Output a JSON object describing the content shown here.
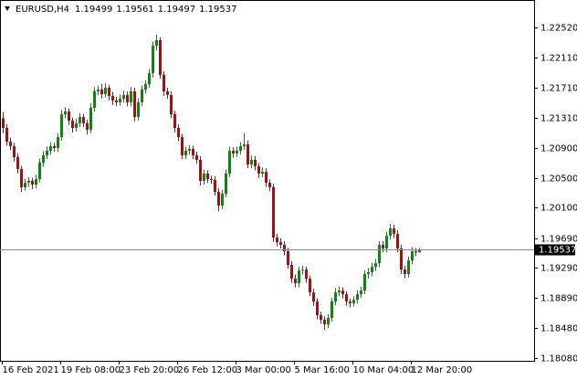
{
  "chart_data": {
    "type": "candlestick",
    "title": "EURUSD,H4",
    "up_color": "#1e7a1e",
    "down_color": "#8b1a1a",
    "price_line_color": "#7a8fa0",
    "ylim": [
      1.18043,
      1.22888
    ],
    "yticks": [
      {
        "value": 1.2252,
        "label": "1.22520"
      },
      {
        "value": 1.2211,
        "label": "1.22110"
      },
      {
        "value": 1.2171,
        "label": "1.21710"
      },
      {
        "value": 1.2131,
        "label": "1.21310"
      },
      {
        "value": 1.209,
        "label": "1.20900"
      },
      {
        "value": 1.205,
        "label": "1.20500"
      },
      {
        "value": 1.201,
        "label": "1.20100"
      },
      {
        "value": 1.1969,
        "label": "1.19690"
      },
      {
        "value": 1.1929,
        "label": "1.19290"
      },
      {
        "value": 1.1889,
        "label": "1.18890"
      },
      {
        "value": 1.1848,
        "label": "1.18480"
      },
      {
        "value": 1.1808,
        "label": "1.18080"
      }
    ],
    "categories": [
      "16 Feb 2021",
      null,
      null,
      null,
      null,
      null,
      null,
      null,
      null,
      null,
      null,
      null,
      null,
      null,
      null,
      null,
      "19 Feb 08:00",
      null,
      null,
      null,
      null,
      null,
      null,
      null,
      null,
      null,
      null,
      null,
      null,
      null,
      null,
      null,
      "23 Feb 20:00",
      null,
      null,
      null,
      null,
      null,
      null,
      null,
      null,
      null,
      null,
      null,
      null,
      null,
      null,
      null,
      "26 Feb 12:00",
      null,
      null,
      null,
      null,
      null,
      null,
      null,
      null,
      null,
      null,
      null,
      null,
      null,
      null,
      null,
      "3 Mar 00:00",
      null,
      null,
      null,
      null,
      null,
      null,
      null,
      null,
      null,
      null,
      null,
      null,
      null,
      null,
      null,
      "5 Mar 16:00",
      null,
      null,
      null,
      null,
      null,
      null,
      null,
      null,
      null,
      null,
      null,
      null,
      null,
      null,
      null,
      "10 Mar 04:00",
      null,
      null,
      null,
      null,
      null,
      null,
      null,
      null,
      null,
      null,
      null,
      null,
      null,
      null,
      null,
      "12 Mar 20:00",
      null,
      null
    ],
    "candles": [
      [
        1.213,
        1.2138,
        1.211,
        1.2117
      ],
      [
        1.2117,
        1.2122,
        1.2093,
        1.20986
      ],
      [
        1.20986,
        1.2104,
        1.2087,
        1.20925
      ],
      [
        1.20925,
        1.2097,
        1.2072,
        1.20778
      ],
      [
        1.20778,
        1.2083,
        1.2056,
        1.20618
      ],
      [
        1.20618,
        1.2066,
        1.2031,
        1.20373
      ],
      [
        1.20373,
        1.2049,
        1.2033,
        1.20434
      ],
      [
        1.20434,
        1.2051,
        1.2038,
        1.20459
      ],
      [
        1.20459,
        1.205,
        1.2035,
        1.20409
      ],
      [
        1.20409,
        1.2054,
        1.2036,
        1.20483
      ],
      [
        1.20483,
        1.2076,
        1.2044,
        1.20704
      ],
      [
        1.20704,
        1.2086,
        1.2065,
        1.20802
      ],
      [
        1.20802,
        1.2092,
        1.2075,
        1.20863
      ],
      [
        1.20863,
        1.2098,
        1.2081,
        1.20925
      ],
      [
        1.20925,
        1.2097,
        1.2085,
        1.209
      ],
      [
        1.209,
        1.211,
        1.2085,
        1.21047
      ],
      [
        1.21047,
        1.2141,
        1.21,
        1.21354
      ],
      [
        1.21354,
        1.2145,
        1.213,
        1.21391
      ],
      [
        1.21391,
        1.2143,
        1.2121,
        1.21268
      ],
      [
        1.21268,
        1.2131,
        1.2111,
        1.2117
      ],
      [
        1.2117,
        1.2129,
        1.2112,
        1.21232
      ],
      [
        1.21232,
        1.2137,
        1.2118,
        1.21317
      ],
      [
        1.21317,
        1.2136,
        1.2118,
        1.21232
      ],
      [
        1.21232,
        1.2128,
        1.2108,
        1.21146
      ],
      [
        1.21146,
        1.215,
        1.211,
        1.2144
      ],
      [
        1.2144,
        1.2172,
        1.2139,
        1.21661
      ],
      [
        1.21661,
        1.2174,
        1.2161,
        1.21686
      ],
      [
        1.21686,
        1.2176,
        1.2157,
        1.21624
      ],
      [
        1.21624,
        1.2177,
        1.2158,
        1.2171
      ],
      [
        1.2171,
        1.2175,
        1.2154,
        1.216
      ],
      [
        1.216,
        1.2165,
        1.2148,
        1.21538
      ],
      [
        1.21538,
        1.2159,
        1.2146,
        1.21514
      ],
      [
        1.21514,
        1.2162,
        1.2147,
        1.21563
      ],
      [
        1.21563,
        1.2167,
        1.2151,
        1.21612
      ],
      [
        1.21612,
        1.2166,
        1.2146,
        1.21514
      ],
      [
        1.21514,
        1.2172,
        1.2146,
        1.21661
      ],
      [
        1.21661,
        1.2171,
        1.2126,
        1.21317
      ],
      [
        1.21317,
        1.2157,
        1.2127,
        1.21514
      ],
      [
        1.21514,
        1.2174,
        1.2146,
        1.21686
      ],
      [
        1.21686,
        1.2181,
        1.2163,
        1.21759
      ],
      [
        1.21759,
        1.2196,
        1.2171,
        1.21906
      ],
      [
        1.21906,
        1.2233,
        1.2185,
        1.22274
      ],
      [
        1.22274,
        1.2242,
        1.2221,
        1.22348
      ],
      [
        1.22348,
        1.2239,
        1.2183,
        1.21882
      ],
      [
        1.21882,
        1.2193,
        1.216,
        1.21661
      ],
      [
        1.21661,
        1.2171,
        1.2156,
        1.21612
      ],
      [
        1.21612,
        1.2166,
        1.213,
        1.21354
      ],
      [
        1.21354,
        1.214,
        1.2111,
        1.2117
      ],
      [
        1.2117,
        1.2122,
        1.2099,
        1.21047
      ],
      [
        1.21047,
        1.2109,
        1.2075,
        1.20802
      ],
      [
        1.20802,
        1.2092,
        1.2075,
        1.20863
      ],
      [
        1.20863,
        1.2094,
        1.2081,
        1.20888
      ],
      [
        1.20888,
        1.2093,
        1.2075,
        1.20802
      ],
      [
        1.20802,
        1.2085,
        1.2069,
        1.20741
      ],
      [
        1.20741,
        1.2079,
        1.204,
        1.20459
      ],
      [
        1.20459,
        1.2061,
        1.2041,
        1.20557
      ],
      [
        1.20557,
        1.206,
        1.2043,
        1.20483
      ],
      [
        1.20483,
        1.2053,
        1.2042,
        1.2047
      ],
      [
        1.2047,
        1.2052,
        1.2026,
        1.20311
      ],
      [
        1.20311,
        1.2036,
        1.2005,
        1.20127
      ],
      [
        1.20127,
        1.2034,
        1.2008,
        1.20287
      ],
      [
        1.20287,
        1.2061,
        1.2024,
        1.20557
      ],
      [
        1.20557,
        1.2092,
        1.2051,
        1.20863
      ],
      [
        1.20863,
        1.2091,
        1.2077,
        1.20827
      ],
      [
        1.20827,
        1.2092,
        1.2078,
        1.20863
      ],
      [
        1.20863,
        1.2098,
        1.2081,
        1.20925
      ],
      [
        1.20925,
        1.211,
        1.2088,
        1.20949
      ],
      [
        1.20949,
        1.21,
        1.2063,
        1.20679
      ],
      [
        1.20679,
        1.208,
        1.2063,
        1.20741
      ],
      [
        1.20741,
        1.2079,
        1.206,
        1.20655
      ],
      [
        1.20655,
        1.207,
        1.205,
        1.20557
      ],
      [
        1.20557,
        1.2064,
        1.2051,
        1.20581
      ],
      [
        1.20581,
        1.2063,
        1.2038,
        1.20434
      ],
      [
        1.20434,
        1.2048,
        1.2032,
        1.20373
      ],
      [
        1.20373,
        1.2042,
        1.1964,
        1.19698
      ],
      [
        1.19698,
        1.1975,
        1.1958,
        1.19636
      ],
      [
        1.19636,
        1.1969,
        1.1955,
        1.196
      ],
      [
        1.196,
        1.1965,
        1.1946,
        1.19514
      ],
      [
        1.19514,
        1.1956,
        1.1928,
        1.1933
      ],
      [
        1.1933,
        1.1938,
        1.1909,
        1.19146
      ],
      [
        1.19146,
        1.192,
        1.1903,
        1.19084
      ],
      [
        1.19084,
        1.1931,
        1.1903,
        1.19256
      ],
      [
        1.19256,
        1.1932,
        1.192,
        1.19268
      ],
      [
        1.19268,
        1.1931,
        1.1909,
        1.19146
      ],
      [
        1.19146,
        1.1919,
        1.1891,
        1.18962
      ],
      [
        1.18962,
        1.1901,
        1.1878,
        1.18839
      ],
      [
        1.18839,
        1.1888,
        1.186,
        1.18655
      ],
      [
        1.18655,
        1.187,
        1.1854,
        1.18593
      ],
      [
        1.18593,
        1.1864,
        1.1846,
        1.18532
      ],
      [
        1.18532,
        1.1867,
        1.1848,
        1.18618
      ],
      [
        1.18618,
        1.1889,
        1.1857,
        1.18839
      ],
      [
        1.18839,
        1.1902,
        1.1879,
        1.18962
      ],
      [
        1.18962,
        1.1904,
        1.1891,
        1.18986
      ],
      [
        1.18986,
        1.1903,
        1.1888,
        1.18937
      ],
      [
        1.18937,
        1.1898,
        1.1878,
        1.18839
      ],
      [
        1.18839,
        1.1888,
        1.1876,
        1.18814
      ],
      [
        1.18814,
        1.1891,
        1.1877,
        1.18863
      ],
      [
        1.18863,
        1.1899,
        1.1881,
        1.18937
      ],
      [
        1.18937,
        1.1904,
        1.1889,
        1.18986
      ],
      [
        1.18986,
        1.1926,
        1.1894,
        1.19207
      ],
      [
        1.19207,
        1.1929,
        1.1915,
        1.19232
      ],
      [
        1.19232,
        1.1936,
        1.1918,
        1.19305
      ],
      [
        1.19305,
        1.1941,
        1.1925,
        1.19354
      ],
      [
        1.19354,
        1.1965,
        1.193,
        1.196
      ],
      [
        1.196,
        1.1965,
        1.195,
        1.19551
      ],
      [
        1.19551,
        1.1978,
        1.195,
        1.19722
      ],
      [
        1.19722,
        1.1988,
        1.1967,
        1.1982
      ],
      [
        1.1982,
        1.1987,
        1.1969,
        1.19747
      ],
      [
        1.19747,
        1.198,
        1.195,
        1.19551
      ],
      [
        1.19551,
        1.196,
        1.1921,
        1.19268
      ],
      [
        1.19268,
        1.1932,
        1.1915,
        1.19207
      ],
      [
        1.19207,
        1.1944,
        1.1916,
        1.19391
      ],
      [
        1.19391,
        1.1957,
        1.1934,
        1.19514
      ],
      [
        1.19514,
        1.1956,
        1.1945,
        1.19499
      ],
      [
        1.19499,
        1.19561,
        1.19497,
        1.19537
      ]
    ]
  }
}
